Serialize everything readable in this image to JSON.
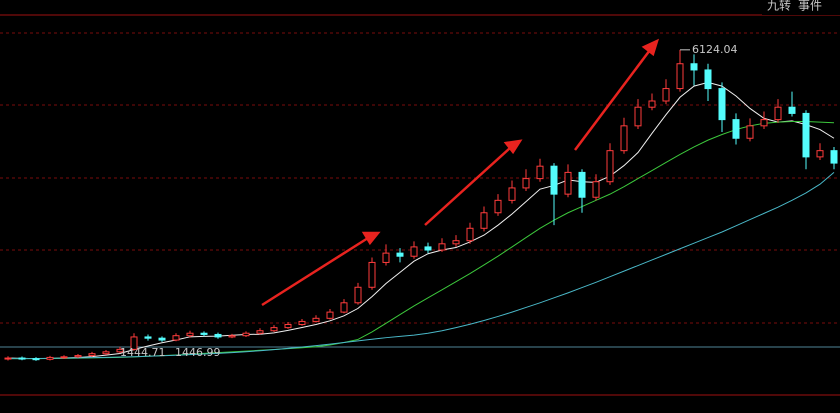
{
  "toolbar": [
    "九转",
    "事件"
  ],
  "chart_data": {
    "type": "candlestick",
    "up_color": "#ff3c3c",
    "down_color": "#54fcfc",
    "ylim": [
      565,
      6685
    ],
    "open": [
      1150,
      1160,
      1150,
      1140,
      1170,
      1180,
      1200,
      1230,
      1260,
      1300,
      1500,
      1480,
      1450,
      1520,
      1560,
      1540,
      1500,
      1520,
      1560,
      1600,
      1650,
      1700,
      1750,
      1800,
      1900,
      2050,
      2300,
      2700,
      2850,
      2800,
      2950,
      2900,
      3000,
      3050,
      3250,
      3500,
      3700,
      3900,
      4050,
      4250,
      3800,
      4150,
      3750,
      4000,
      4500,
      4900,
      5200,
      5300,
      5500,
      5900,
      5800,
      5500,
      5000,
      4700,
      4900,
      5000,
      5200,
      5100,
      4400,
      4500
    ],
    "close": [
      1160,
      1150,
      1140,
      1170,
      1180,
      1200,
      1230,
      1260,
      1300,
      1500,
      1480,
      1450,
      1520,
      1560,
      1540,
      1500,
      1520,
      1560,
      1600,
      1650,
      1700,
      1750,
      1800,
      1900,
      2050,
      2300,
      2700,
      2850,
      2800,
      2950,
      2900,
      3000,
      3050,
      3250,
      3500,
      3700,
      3900,
      4050,
      4250,
      3800,
      4150,
      3750,
      4000,
      4500,
      4900,
      5200,
      5300,
      5500,
      5900,
      5800,
      5500,
      5000,
      4700,
      4900,
      5000,
      5200,
      5100,
      4400,
      4500,
      4300
    ],
    "high": [
      1190,
      1185,
      1175,
      1195,
      1205,
      1225,
      1260,
      1290,
      1340,
      1560,
      1540,
      1510,
      1560,
      1600,
      1590,
      1570,
      1550,
      1590,
      1640,
      1690,
      1740,
      1790,
      1850,
      1950,
      2110,
      2370,
      2780,
      2990,
      2930,
      3040,
      3020,
      3090,
      3140,
      3340,
      3600,
      3800,
      4020,
      4200,
      4370,
      4300,
      4280,
      4200,
      4120,
      4620,
      5030,
      5330,
      5420,
      5650,
      6124.04,
      6050,
      5900,
      5600,
      5100,
      5020,
      5130,
      5330,
      5450,
      5150,
      4620,
      4560
    ],
    "low": [
      1120,
      1125,
      1115,
      1120,
      1145,
      1160,
      1180,
      1210,
      1240,
      1280,
      1440,
      1420,
      1430,
      1490,
      1510,
      1470,
      1480,
      1500,
      1540,
      1580,
      1630,
      1680,
      1730,
      1780,
      1880,
      2020,
      2260,
      2650,
      2700,
      2760,
      2850,
      2870,
      2950,
      3000,
      3200,
      3450,
      3650,
      3850,
      4000,
      3300,
      3750,
      3500,
      3700,
      3950,
      4450,
      4850,
      5150,
      5250,
      5450,
      5550,
      5300,
      4800,
      4600,
      4650,
      4850,
      4950,
      5050,
      4200,
      4350,
      4200
    ],
    "lines": [
      {
        "color": "#f0f0f0",
        "values": [
          1160,
          1155,
          1150,
          1155,
          1160,
          1168,
          1184,
          1208,
          1234,
          1298,
          1354,
          1406,
          1450,
          1502,
          1510,
          1514,
          1528,
          1540,
          1544,
          1566,
          1606,
          1652,
          1700,
          1760,
          1840,
          1960,
          2150,
          2360,
          2540,
          2720,
          2840,
          2900,
          2940,
          3030,
          3140,
          3300,
          3480,
          3680,
          3880,
          3940,
          4030,
          4000,
          3990,
          4090,
          4260,
          4470,
          4780,
          5080,
          5360,
          5540,
          5600,
          5540,
          5380,
          5180,
          5020,
          4960,
          4980,
          4920,
          4840,
          4700
        ]
      },
      {
        "color": "#3cc83c",
        "values": [
          1150,
          1150,
          1150,
          1152,
          1155,
          1158,
          1162,
          1166,
          1170,
          1180,
          1190,
          1200,
          1210,
          1222,
          1235,
          1248,
          1260,
          1272,
          1285,
          1298,
          1312,
          1326,
          1342,
          1370,
          1410,
          1460,
          1580,
          1720,
          1860,
          2000,
          2130,
          2260,
          2390,
          2520,
          2660,
          2800,
          2950,
          3100,
          3250,
          3380,
          3500,
          3600,
          3700,
          3800,
          3920,
          4050,
          4180,
          4310,
          4440,
          4560,
          4670,
          4760,
          4840,
          4900,
          4940,
          4960,
          4970,
          4970,
          4960,
          4950
        ]
      },
      {
        "color": "#4ab8c8",
        "values": [
          1150,
          1150,
          1152,
          1155,
          1158,
          1162,
          1166,
          1171,
          1176,
          1182,
          1190,
          1198,
          1206,
          1215,
          1225,
          1236,
          1248,
          1262,
          1278,
          1296,
          1316,
          1338,
          1360,
          1384,
          1410,
          1436,
          1462,
          1488,
          1510,
          1530,
          1560,
          1600,
          1650,
          1705,
          1765,
          1830,
          1900,
          1975,
          2050,
          2130,
          2210,
          2295,
          2380,
          2470,
          2560,
          2650,
          2740,
          2830,
          2920,
          3010,
          3100,
          3190,
          3290,
          3390,
          3490,
          3590,
          3700,
          3820,
          3960,
          4150
        ]
      }
    ],
    "annotations": [
      "6124.04",
      "1444.71",
      "1446.99"
    ]
  }
}
